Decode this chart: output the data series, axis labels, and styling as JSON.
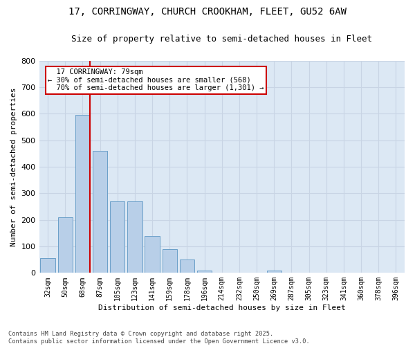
{
  "title_line1": "17, CORRINGWAY, CHURCH CROOKHAM, FLEET, GU52 6AW",
  "title_line2": "Size of property relative to semi-detached houses in Fleet",
  "xlabel": "Distribution of semi-detached houses by size in Fleet",
  "ylabel": "Number of semi-detached properties",
  "categories": [
    "32sqm",
    "50sqm",
    "68sqm",
    "87sqm",
    "105sqm",
    "123sqm",
    "141sqm",
    "159sqm",
    "178sqm",
    "196sqm",
    "214sqm",
    "232sqm",
    "250sqm",
    "269sqm",
    "287sqm",
    "305sqm",
    "323sqm",
    "341sqm",
    "360sqm",
    "378sqm",
    "396sqm"
  ],
  "values": [
    55,
    210,
    595,
    460,
    270,
    270,
    140,
    90,
    50,
    8,
    0,
    0,
    0,
    8,
    0,
    0,
    0,
    0,
    0,
    0,
    0
  ],
  "bar_color": "#b8cfe8",
  "bar_edge_color": "#6a9fc8",
  "vline_color": "#cc0000",
  "annotation_box_edge_color": "#cc0000",
  "ylim": [
    0,
    800
  ],
  "yticks": [
    0,
    100,
    200,
    300,
    400,
    500,
    600,
    700,
    800
  ],
  "grid_color": "#c8d4e4",
  "background_color": "#dce8f4",
  "property_size_label": "17 CORRINGWAY: 79sqm",
  "pct_smaller": 30,
  "pct_larger": 70,
  "n_smaller": 568,
  "n_larger": 1301,
  "vline_bar_index": 2,
  "footer": "Contains HM Land Registry data © Crown copyright and database right 2025.\nContains public sector information licensed under the Open Government Licence v3.0.",
  "title_fontsize": 10,
  "subtitle_fontsize": 9,
  "axis_label_fontsize": 8,
  "tick_fontsize": 7,
  "annotation_fontsize": 7.5
}
